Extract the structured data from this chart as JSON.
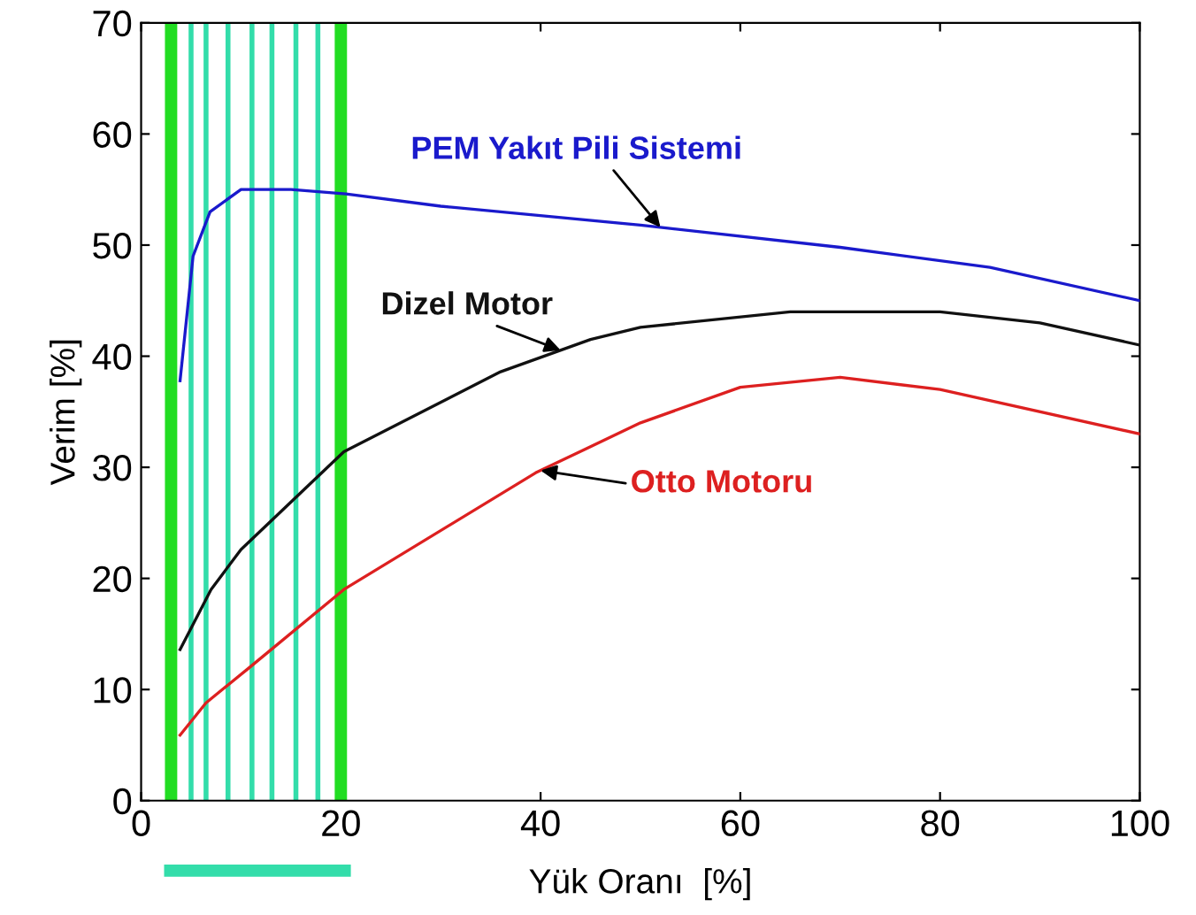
{
  "chart_data": {
    "type": "line",
    "xlabel": "Yük Oranı  [%]",
    "ylabel": "Verim [%]",
    "xlim": [
      0,
      100
    ],
    "ylim": [
      0,
      70
    ],
    "xticks": [
      0,
      20,
      40,
      60,
      80,
      100
    ],
    "yticks": [
      0,
      10,
      20,
      30,
      40,
      50,
      60,
      70
    ],
    "grid": false,
    "legend": false,
    "marker": "none",
    "line_style": "solid",
    "series": [
      {
        "name": "PEM Yakıt Pili Sistemi",
        "color": "#1a1acc",
        "x": [
          3.9,
          5.2,
          6.9,
          10,
          15,
          20.5,
          30,
          50,
          70,
          85,
          100
        ],
        "values": [
          37.8,
          49,
          53,
          55,
          55,
          54.6,
          53.5,
          51.8,
          49.8,
          48,
          45
        ]
      },
      {
        "name": "Dizel Motor",
        "color": "#111111",
        "x": [
          3.9,
          7,
          10,
          20.3,
          36,
          45,
          50,
          65,
          80,
          90,
          100
        ],
        "values": [
          13.6,
          19,
          22.6,
          31.4,
          38.6,
          41.5,
          42.6,
          44,
          44,
          43,
          41
        ]
      },
      {
        "name": "Otto Motoru",
        "color": "#dd2020",
        "x": [
          3.9,
          6.5,
          10.6,
          20.3,
          39.5,
          50,
          60,
          70,
          80,
          100
        ],
        "values": [
          5.9,
          8.8,
          11.8,
          19,
          29.5,
          34,
          37.2,
          38.1,
          37,
          33
        ]
      }
    ],
    "ref_lines": [
      {
        "axis": "x",
        "value": 3,
        "color": "#22dd22"
      },
      {
        "axis": "x",
        "value": 20,
        "color": "#22dd22"
      },
      {
        "axis": "x",
        "value": 5,
        "color": "#33ddaa"
      },
      {
        "axis": "x",
        "value": 6.5,
        "color": "#33ddaa"
      },
      {
        "axis": "x",
        "value": 8.7,
        "color": "#33ddaa"
      },
      {
        "axis": "x",
        "value": 11.1,
        "color": "#33ddaa"
      },
      {
        "axis": "x",
        "value": 13.1,
        "color": "#33ddaa"
      },
      {
        "axis": "x",
        "value": 15.5,
        "color": "#33ddaa"
      },
      {
        "axis": "x",
        "value": 17.7,
        "color": "#33ddaa"
      }
    ]
  }
}
